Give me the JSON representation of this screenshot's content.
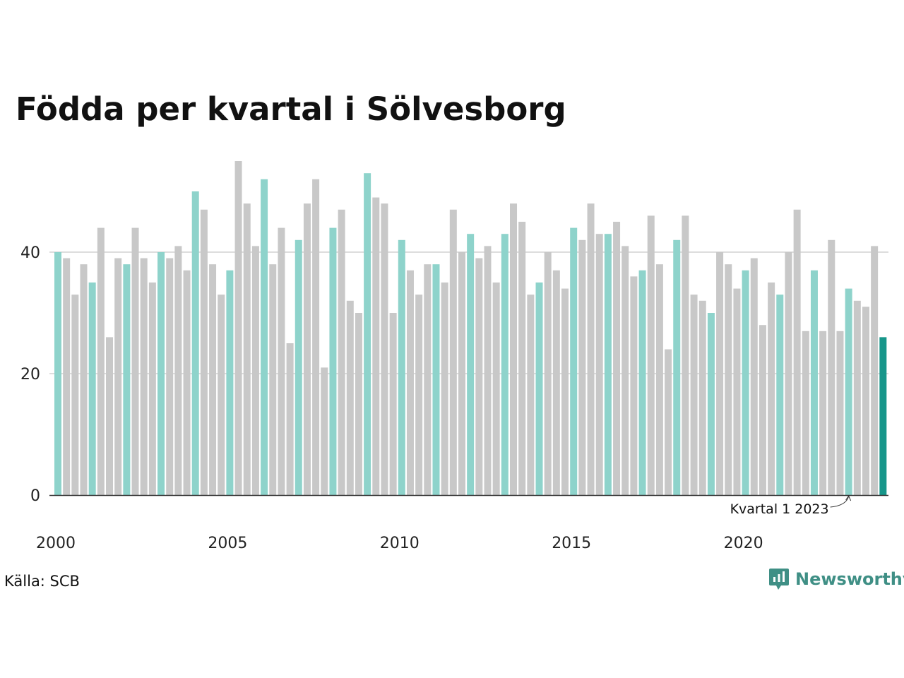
{
  "chart_data": {
    "type": "bar",
    "title": "Födda per kvartal i Sölvesborg",
    "source": "Källa: SCB",
    "brand": "Newsworthy",
    "annotation": "Kvartal 1 2023",
    "ylim": [
      0,
      55
    ],
    "yticks": [
      0,
      20,
      40
    ],
    "xtick_labels": [
      "2000",
      "2005",
      "2010",
      "2015",
      "2020"
    ],
    "grid": true,
    "colors": {
      "q1": "#8ed3cb",
      "other": "#c8c8c8",
      "latest": "#17968a",
      "grid": "#dddddd",
      "axis": "#333333"
    },
    "categories": [
      "2000 Q1",
      "2000 Q2",
      "2000 Q3",
      "2000 Q4",
      "2001 Q1",
      "2001 Q2",
      "2001 Q3",
      "2001 Q4",
      "2002 Q1",
      "2002 Q2",
      "2002 Q3",
      "2002 Q4",
      "2003 Q1",
      "2003 Q2",
      "2003 Q3",
      "2003 Q4",
      "2004 Q1",
      "2004 Q2",
      "2004 Q3",
      "2004 Q4",
      "2005 Q1",
      "2005 Q2",
      "2005 Q3",
      "2005 Q4",
      "2006 Q1",
      "2006 Q2",
      "2006 Q3",
      "2006 Q4",
      "2007 Q1",
      "2007 Q2",
      "2007 Q3",
      "2007 Q4",
      "2008 Q1",
      "2008 Q2",
      "2008 Q3",
      "2008 Q4",
      "2009 Q1",
      "2009 Q2",
      "2009 Q3",
      "2009 Q4",
      "2010 Q1",
      "2010 Q2",
      "2010 Q3",
      "2010 Q4",
      "2011 Q1",
      "2011 Q2",
      "2011 Q3",
      "2011 Q4",
      "2012 Q1",
      "2012 Q2",
      "2012 Q3",
      "2012 Q4",
      "2013 Q1",
      "2013 Q2",
      "2013 Q3",
      "2013 Q4",
      "2014 Q1",
      "2014 Q2",
      "2014 Q3",
      "2014 Q4",
      "2015 Q1",
      "2015 Q2",
      "2015 Q3",
      "2015 Q4",
      "2016 Q1",
      "2016 Q2",
      "2016 Q3",
      "2016 Q4",
      "2017 Q1",
      "2017 Q2",
      "2017 Q3",
      "2017 Q4",
      "2018 Q1",
      "2018 Q2",
      "2018 Q3",
      "2018 Q4",
      "2019 Q1",
      "2019 Q2",
      "2019 Q3",
      "2019 Q4",
      "2020 Q1",
      "2020 Q2",
      "2020 Q3",
      "2020 Q4",
      "2021 Q1",
      "2021 Q2",
      "2021 Q3",
      "2021 Q4",
      "2022 Q1",
      "2022 Q2",
      "2022 Q3",
      "2022 Q4",
      "2023 Q1",
      "2023 Q2",
      "2023 Q3",
      "2023 Q4",
      "2024 Q1"
    ],
    "values": [
      40,
      39,
      33,
      38,
      35,
      44,
      26,
      39,
      38,
      44,
      39,
      35,
      40,
      39,
      41,
      37,
      50,
      47,
      38,
      33,
      37,
      55,
      48,
      41,
      52,
      38,
      44,
      25,
      42,
      48,
      52,
      21,
      44,
      47,
      32,
      30,
      53,
      49,
      48,
      30,
      42,
      37,
      33,
      38,
      38,
      35,
      47,
      40,
      43,
      39,
      41,
      35,
      43,
      48,
      45,
      33,
      35,
      40,
      37,
      34,
      44,
      42,
      48,
      43,
      43,
      45,
      41,
      36,
      37,
      46,
      38,
      24,
      42,
      46,
      33,
      32,
      30,
      40,
      38,
      34,
      37,
      39,
      28,
      35,
      33,
      40,
      47,
      27,
      37,
      27,
      42,
      27,
      34,
      32,
      31,
      41,
      26
    ]
  }
}
